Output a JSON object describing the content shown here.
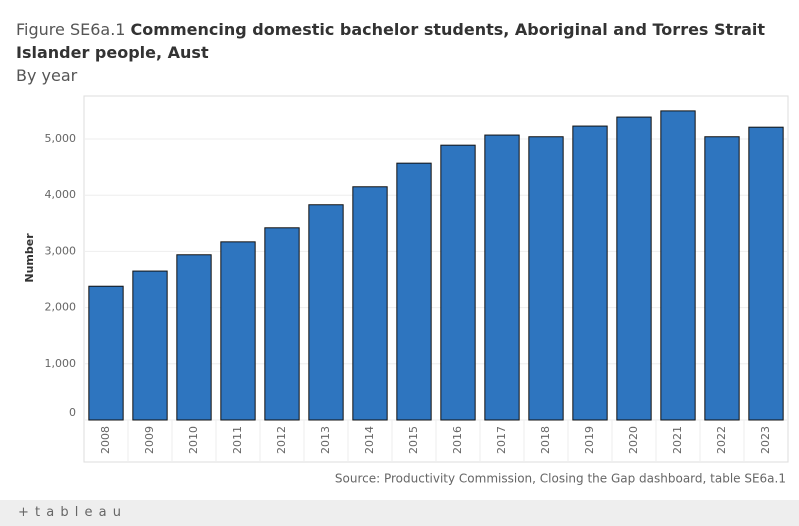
{
  "figure_label": "Figure SE6a.1",
  "chart_data": {
    "type": "bar",
    "title": "Commencing domestic bachelor students, Aboriginal and Torres Strait Islander people, Aust",
    "subtitle": "By year",
    "y_label": "Number",
    "categories": [
      "2008",
      "2009",
      "2010",
      "2011",
      "2012",
      "2013",
      "2014",
      "2015",
      "2016",
      "2017",
      "2018",
      "2019",
      "2020",
      "2021",
      "2022",
      "2023"
    ],
    "values": [
      2380,
      2650,
      2940,
      3170,
      3420,
      3830,
      4150,
      4570,
      4890,
      5070,
      5040,
      5230,
      5390,
      5500,
      5040,
      5210
    ],
    "color": "#2e75bf",
    "ylim": [
      0,
      5765
    ],
    "yticks": [
      0,
      {
        "value": 1000,
        "label": "1,000"
      },
      {
        "value": 2000,
        "label": "2,000"
      },
      {
        "value": 3000,
        "label": "3,000"
      },
      {
        "value": 4000,
        "label": "4,000"
      },
      {
        "value": 5000,
        "label": "5,000"
      }
    ],
    "grid": true
  },
  "source": "Source: Productivity Commission, Closing the Gap dashboard, table SE6a.1",
  "footer": {
    "logo": "+ t a b l e a u"
  }
}
